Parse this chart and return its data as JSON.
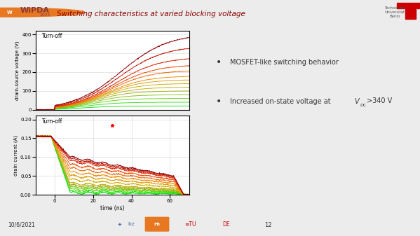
{
  "title": "Switching characteristics at varied blocking voltage",
  "background_color": "#ececec",
  "header_bg": "#ffffff",
  "bullet1": "MOSFET-like switching behavior",
  "bullet2_pre": "Increased on-state voltage at ",
  "bullet2_post": ">340 V",
  "date_text": "10/6/2021",
  "page_num": "12",
  "top_plot": {
    "ylabel": "drain-source voltage (V)",
    "ylim": [
      0,
      420
    ],
    "yticks": [
      0,
      100,
      200,
      300,
      400
    ],
    "label": "Turn-off",
    "plateau_values": [
      20,
      40,
      60,
      80,
      100,
      120,
      140,
      160,
      180,
      210,
      240,
      280,
      340,
      405
    ]
  },
  "bottom_plot": {
    "ylabel": "drain current (A)",
    "ylim": [
      0,
      0.21
    ],
    "yticks": [
      0,
      0.05,
      0.1,
      0.15,
      0.2
    ],
    "xticks": [
      0,
      20,
      40,
      60
    ],
    "xlabel": "time (ns)",
    "label": "Turn-off",
    "plateau_values": [
      0.005,
      0.01,
      0.015,
      0.02,
      0.025,
      0.03,
      0.04,
      0.05,
      0.06,
      0.07,
      0.08,
      0.09,
      0.095,
      0.1
    ]
  },
  "curve_colors": [
    "#00dd00",
    "#22dd00",
    "#55cc00",
    "#77bb00",
    "#99aa00",
    "#bbaa00",
    "#ccaa00",
    "#dd9900",
    "#ee8800",
    "#ee6600",
    "#ee4400",
    "#dd2200",
    "#bb1100",
    "#880000"
  ],
  "n_curves": 14,
  "xlim": [
    -10,
    70
  ],
  "t_start": -10,
  "t_end": 70
}
